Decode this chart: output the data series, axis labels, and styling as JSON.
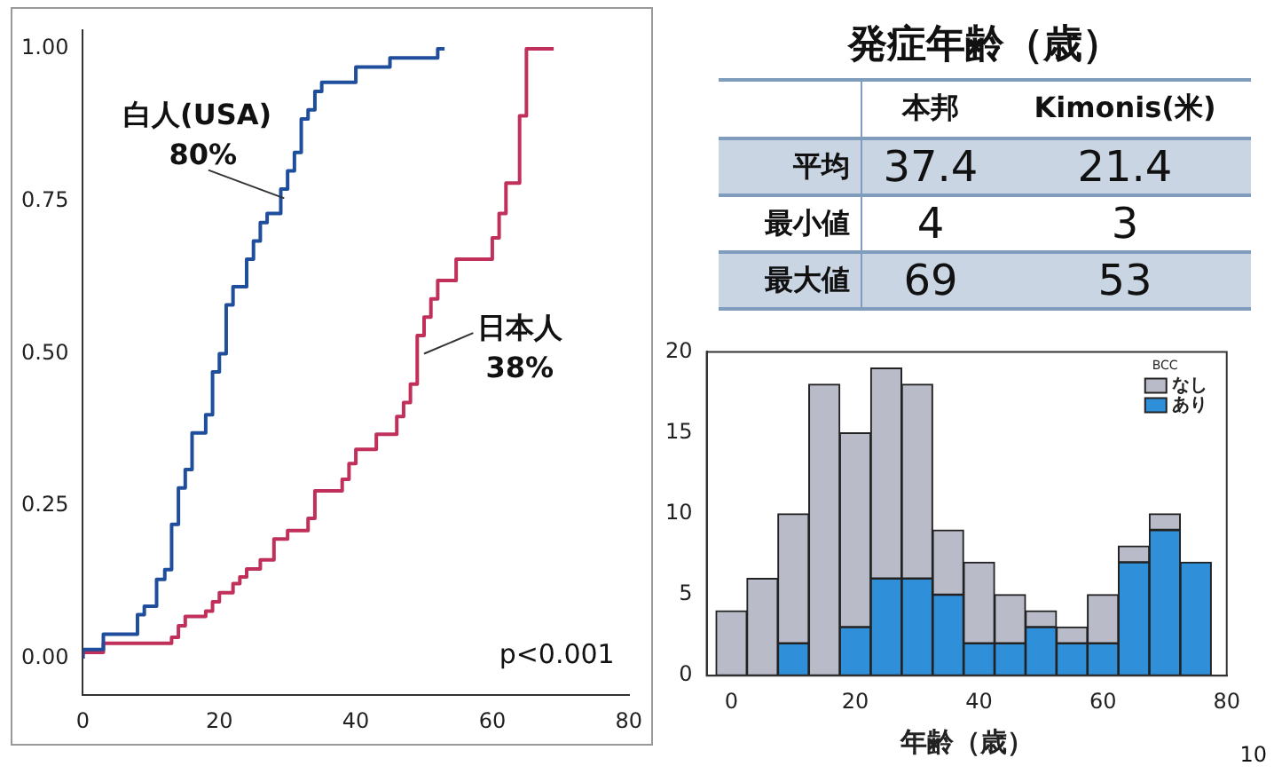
{
  "chart_data": [
    {
      "type": "step",
      "xlim": [
        0,
        80
      ],
      "xticks": [
        0,
        20,
        40,
        60,
        80
      ],
      "ylim": [
        -0.06,
        1.03
      ],
      "yticks": [
        {
          "value": 0,
          "label": "0.00"
        },
        {
          "value": 0.25,
          "label": "0.25"
        },
        {
          "value": 0.5,
          "label": "0.50"
        },
        {
          "value": 0.75,
          "label": "0.75"
        },
        {
          "value": 1,
          "label": "1.00"
        }
      ],
      "grid": false,
      "legend": false,
      "series": [
        {
          "name": "白人(USA)",
          "color": "#1f4e9c",
          "x": [
            0,
            3,
            8,
            9,
            10.8,
            12,
            13,
            14,
            15,
            16,
            18,
            19,
            20,
            21,
            22,
            24,
            25,
            26,
            27,
            29,
            30,
            31,
            32,
            33,
            34,
            35,
            40,
            45,
            52,
            53
          ],
          "values": [
            0,
            0.015,
            0.04,
            0.072,
            0.086,
            0.13,
            0.146,
            0.22,
            0.28,
            0.31,
            0.37,
            0.4,
            0.47,
            0.5,
            0.58,
            0.61,
            0.655,
            0.685,
            0.715,
            0.73,
            0.77,
            0.8,
            0.83,
            0.885,
            0.9,
            0.93,
            0.945,
            0.97,
            0.985,
            1.0
          ]
        },
        {
          "name": "日本人",
          "color": "#c0305a",
          "x": [
            0,
            3,
            13,
            14,
            15,
            18,
            19,
            20,
            22,
            23,
            24,
            26,
            28,
            30,
            33,
            34,
            38,
            39,
            40,
            43,
            46,
            47,
            48,
            49,
            50,
            51,
            52,
            54.7,
            60,
            61,
            62,
            64,
            65,
            69
          ],
          "values": [
            0,
            0.01,
            0.025,
            0.035,
            0.054,
            0.069,
            0.078,
            0.093,
            0.108,
            0.123,
            0.134,
            0.147,
            0.162,
            0.196,
            0.21,
            0.23,
            0.275,
            0.294,
            0.32,
            0.343,
            0.368,
            0.397,
            0.42,
            0.45,
            0.53,
            0.56,
            0.59,
            0.62,
            0.655,
            0.69,
            0.73,
            0.78,
            0.89,
            1.0
          ]
        }
      ],
      "annotations": [
        {
          "text": "80%",
          "x": 29.5,
          "y": 0.755
        },
        {
          "text": "38%",
          "x": 50,
          "y": 0.5
        },
        "p<0.001"
      ]
    },
    {
      "type": "other",
      "title": "発症年齢（歳）",
      "categories": [
        "本邦",
        "Kimonis(米)"
      ],
      "y_categories": [
        "平均",
        "最小値",
        "最大値"
      ],
      "cell_labels": [
        [
          "37.4",
          "21.4"
        ],
        [
          "4",
          "3"
        ],
        [
          "69",
          "53"
        ]
      ],
      "annotations": [
        "10"
      ]
    },
    {
      "type": "bar",
      "x": [
        0,
        5,
        10,
        15,
        20,
        25,
        30,
        35,
        40,
        45,
        50,
        55,
        60,
        65,
        70,
        75
      ],
      "stacked": true,
      "xlabel": "年齢（歳）",
      "xlim": [
        -4,
        80
      ],
      "xticks": [
        0,
        20,
        40,
        60,
        80
      ],
      "ylim": [
        0,
        20
      ],
      "yticks": [
        0,
        5,
        10,
        15,
        20
      ],
      "grid": false,
      "legend": "top right",
      "legend_title": "BCC",
      "series": [
        {
          "name": "あり",
          "color": "#2f8fd8",
          "values": [
            0,
            0,
            2,
            0,
            3,
            6,
            6,
            5,
            2,
            2,
            3,
            2,
            2,
            7,
            9,
            7
          ]
        },
        {
          "name": "なし",
          "color": "#b9bcc8",
          "values": [
            4,
            6,
            8,
            18,
            12,
            13,
            12,
            4,
            5,
            3,
            1,
            1,
            3,
            1,
            1,
            0
          ]
        }
      ]
    }
  ]
}
